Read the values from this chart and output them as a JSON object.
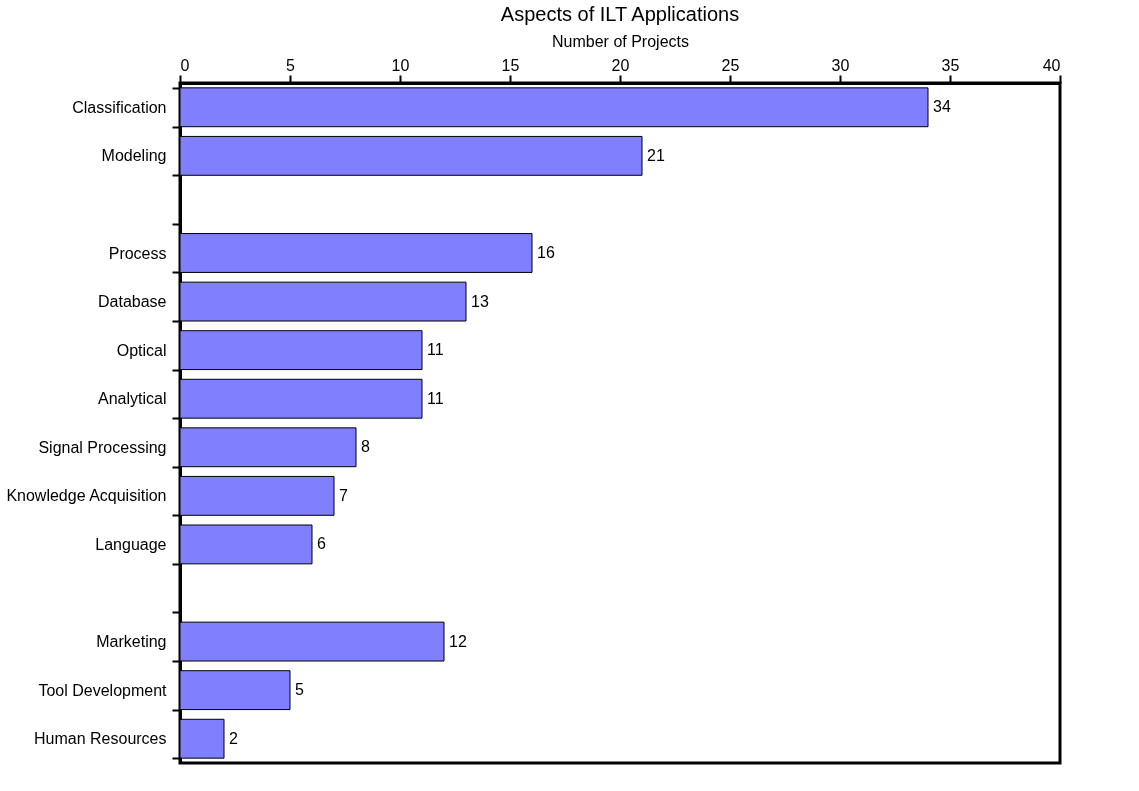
{
  "chart_data": {
    "type": "bar",
    "orientation": "horizontal",
    "title": "Aspects of ILT Applications",
    "xlabel": "Number of Projects",
    "categories": [
      "Classification",
      "Modeling",
      null,
      "Process",
      "Database",
      "Optical",
      "Analytical",
      "Signal Processing",
      "Knowledge Acquisition",
      "Language",
      null,
      "Marketing",
      "Tool Development",
      "Human Resources"
    ],
    "values": [
      34,
      21,
      null,
      16,
      13,
      11,
      11,
      8,
      7,
      6,
      null,
      12,
      5,
      2
    ],
    "color": "#8080ff",
    "xlim": [
      0,
      40
    ],
    "xticks": [
      0,
      5,
      10,
      15,
      20,
      25,
      30,
      35,
      40
    ],
    "data_labels": true,
    "grid": false
  }
}
